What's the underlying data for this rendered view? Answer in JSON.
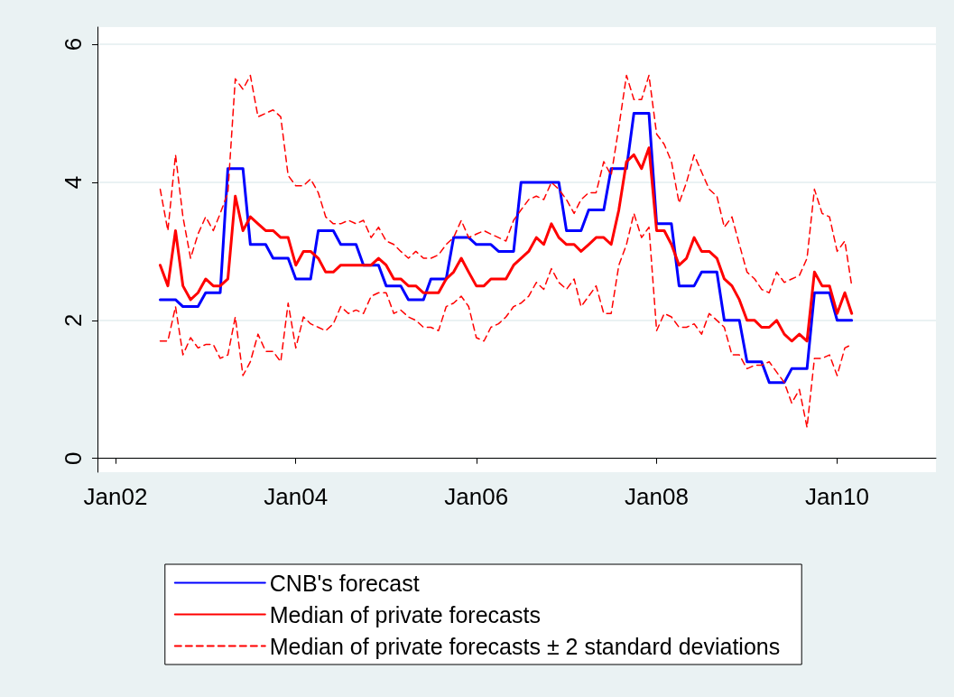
{
  "chart_data": {
    "type": "line",
    "x": [
      "2002-07",
      "2002-08",
      "2002-09",
      "2002-10",
      "2002-11",
      "2002-12",
      "2003-01",
      "2003-02",
      "2003-03",
      "2003-04",
      "2003-05",
      "2003-06",
      "2003-07",
      "2003-08",
      "2003-09",
      "2003-10",
      "2003-11",
      "2003-12",
      "2004-01",
      "2004-02",
      "2004-03",
      "2004-04",
      "2004-05",
      "2004-06",
      "2004-07",
      "2004-08",
      "2004-09",
      "2004-10",
      "2004-11",
      "2004-12",
      "2005-01",
      "2005-02",
      "2005-03",
      "2005-04",
      "2005-05",
      "2005-06",
      "2005-07",
      "2005-08",
      "2005-09",
      "2005-10",
      "2005-11",
      "2005-12",
      "2006-01",
      "2006-02",
      "2006-03",
      "2006-04",
      "2006-05",
      "2006-06",
      "2006-07",
      "2006-08",
      "2006-09",
      "2006-10",
      "2006-11",
      "2006-12",
      "2007-01",
      "2007-02",
      "2007-03",
      "2007-04",
      "2007-05",
      "2007-06",
      "2007-07",
      "2007-08",
      "2007-09",
      "2007-10",
      "2007-11",
      "2007-12",
      "2008-01",
      "2008-02",
      "2008-03",
      "2008-04",
      "2008-05",
      "2008-06",
      "2008-07",
      "2008-08",
      "2008-09",
      "2008-10",
      "2008-11",
      "2008-12",
      "2009-01",
      "2009-02",
      "2009-03",
      "2009-04",
      "2009-05",
      "2009-06",
      "2009-07",
      "2009-08",
      "2009-09",
      "2009-10",
      "2009-11",
      "2009-12",
      "2010-01",
      "2010-02",
      "2010-03"
    ],
    "series": [
      {
        "name": "CNB's forecast",
        "color": "#0000ff",
        "line_style": "solid",
        "values": [
          2.3,
          2.3,
          2.3,
          2.2,
          2.2,
          2.2,
          2.4,
          2.4,
          2.4,
          4.2,
          4.2,
          4.2,
          3.1,
          3.1,
          3.1,
          2.9,
          2.9,
          2.9,
          2.6,
          2.6,
          2.6,
          3.3,
          3.3,
          3.3,
          3.1,
          3.1,
          3.1,
          2.8,
          2.8,
          2.8,
          2.5,
          2.5,
          2.5,
          2.3,
          2.3,
          2.3,
          2.6,
          2.6,
          2.6,
          3.2,
          3.2,
          3.2,
          3.1,
          3.1,
          3.1,
          3.0,
          3.0,
          3.0,
          4.0,
          4.0,
          4.0,
          4.0,
          4.0,
          4.0,
          3.3,
          3.3,
          3.3,
          3.6,
          3.6,
          3.6,
          4.2,
          4.2,
          4.2,
          5.0,
          5.0,
          5.0,
          3.4,
          3.4,
          3.4,
          2.5,
          2.5,
          2.5,
          2.7,
          2.7,
          2.7,
          2.0,
          2.0,
          2.0,
          1.4,
          1.4,
          1.4,
          1.1,
          1.1,
          1.1,
          1.3,
          1.3,
          1.3,
          2.4,
          2.4,
          2.4,
          2.0,
          2.0,
          2.0
        ]
      },
      {
        "name": "Median of private forecasts",
        "color": "#ff0000",
        "line_style": "solid",
        "values": [
          2.8,
          2.5,
          3.3,
          2.5,
          2.3,
          2.4,
          2.6,
          2.5,
          2.5,
          2.6,
          3.8,
          3.3,
          3.5,
          3.4,
          3.3,
          3.3,
          3.2,
          3.2,
          2.8,
          3.0,
          3.0,
          2.9,
          2.7,
          2.7,
          2.8,
          2.8,
          2.8,
          2.8,
          2.8,
          2.9,
          2.8,
          2.6,
          2.6,
          2.5,
          2.5,
          2.4,
          2.4,
          2.4,
          2.6,
          2.7,
          2.9,
          2.7,
          2.5,
          2.5,
          2.6,
          2.6,
          2.6,
          2.8,
          2.9,
          3.0,
          3.2,
          3.1,
          3.4,
          3.2,
          3.1,
          3.1,
          3.0,
          3.1,
          3.2,
          3.2,
          3.1,
          3.6,
          4.3,
          4.4,
          4.2,
          4.5,
          3.3,
          3.3,
          3.1,
          2.8,
          2.9,
          3.2,
          3.0,
          3.0,
          2.9,
          2.6,
          2.5,
          2.3,
          2.0,
          2.0,
          1.9,
          1.9,
          2.0,
          1.8,
          1.7,
          1.8,
          1.7,
          2.7,
          2.5,
          2.5,
          2.1,
          2.4,
          2.1
        ]
      },
      {
        "name": "Median of private forecasts ± 2 standard deviations",
        "color": "#ff0000",
        "line_style": "dashed",
        "values": [
          3.9,
          3.3,
          4.4,
          3.5,
          2.9,
          3.25,
          3.5,
          3.3,
          3.55,
          3.85,
          5.5,
          5.35,
          5.55,
          4.95,
          5.0,
          5.05,
          4.95,
          4.1,
          3.95,
          3.95,
          4.05,
          3.85,
          3.5,
          3.4,
          3.4,
          3.45,
          3.4,
          3.45,
          3.2,
          3.35,
          3.15,
          3.1,
          3.0,
          2.9,
          3.0,
          2.9,
          2.9,
          2.95,
          3.1,
          3.2,
          3.45,
          3.2,
          3.25,
          3.3,
          3.25,
          3.2,
          3.15,
          3.45,
          3.6,
          3.75,
          3.8,
          3.75,
          4.0,
          3.9,
          3.75,
          3.55,
          3.75,
          3.85,
          3.85,
          4.3,
          4.1,
          4.8,
          5.55,
          5.2,
          5.2,
          5.55,
          4.7,
          4.55,
          4.3,
          3.7,
          4.0,
          4.4,
          4.15,
          3.9,
          3.8,
          3.35,
          3.5,
          3.1,
          2.7,
          2.6,
          2.45,
          2.4,
          2.7,
          2.55,
          2.6,
          2.65,
          2.9,
          3.9,
          3.55,
          3.5,
          3.0,
          3.15,
          2.5
        ]
      },
      {
        "color": "#ff0000",
        "line_style": "dashed",
        "values": [
          1.7,
          1.7,
          2.2,
          1.5,
          1.75,
          1.6,
          1.65,
          1.65,
          1.45,
          1.5,
          2.05,
          1.2,
          1.4,
          1.8,
          1.55,
          1.55,
          1.4,
          2.25,
          1.6,
          2.05,
          1.95,
          1.9,
          1.85,
          1.95,
          2.2,
          2.1,
          2.15,
          2.1,
          2.35,
          2.4,
          2.4,
          2.1,
          2.15,
          2.05,
          2.0,
          1.9,
          1.9,
          1.85,
          2.2,
          2.25,
          2.35,
          2.2,
          1.75,
          1.7,
          1.9,
          1.95,
          2.05,
          2.2,
          2.25,
          2.35,
          2.55,
          2.45,
          2.75,
          2.55,
          2.45,
          2.6,
          2.2,
          2.35,
          2.5,
          2.1,
          2.1,
          2.8,
          3.1,
          3.55,
          3.2,
          3.35,
          1.85,
          2.1,
          2.05,
          1.9,
          1.9,
          1.95,
          1.8,
          2.1,
          2.0,
          1.9,
          1.5,
          1.5,
          1.3,
          1.35,
          1.35,
          1.4,
          1.25,
          1.1,
          0.8,
          1.0,
          0.45,
          1.45,
          1.45,
          1.5,
          1.2,
          1.6,
          1.65
        ]
      }
    ],
    "xlim": [
      "2001-10-20",
      "2011-02-05"
    ],
    "xticks": [
      {
        "value": "2002-01",
        "label": "Jan02"
      },
      {
        "value": "2004-01",
        "label": "Jan04"
      },
      {
        "value": "2006-01",
        "label": "Jan06"
      },
      {
        "value": "2008-01",
        "label": "Jan08"
      },
      {
        "value": "2010-01",
        "label": "Jan10"
      }
    ],
    "ylim": [
      -0.2,
      6.25
    ],
    "yticks": [
      0,
      2,
      4,
      6
    ],
    "grid": "y",
    "legend": "bottom",
    "marker": "none"
  }
}
